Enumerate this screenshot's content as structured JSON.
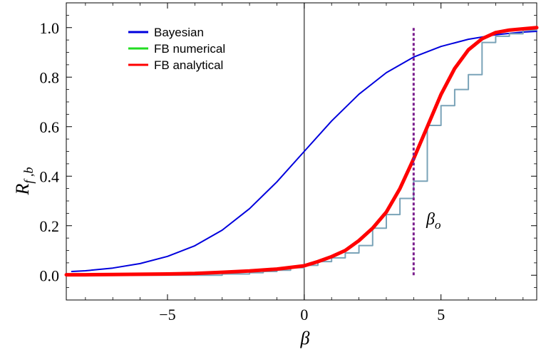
{
  "chart_data": {
    "type": "line",
    "xlabel": "β",
    "ylabel_main": "R",
    "ylabel_sub": "f ,b",
    "xlim": [
      -8.7,
      8.5
    ],
    "ylim": [
      -0.1,
      1.1
    ],
    "xticks": [
      {
        "value": -5,
        "label": "−5"
      },
      {
        "value": 0,
        "label": "0"
      },
      {
        "value": 5,
        "label": "5"
      }
    ],
    "yticks": [
      {
        "value": 0.0,
        "label": "0.0"
      },
      {
        "value": 0.2,
        "label": "0.2"
      },
      {
        "value": 0.4,
        "label": "0.4"
      },
      {
        "value": 0.6,
        "label": "0.6"
      },
      {
        "value": 0.8,
        "label": "0.8"
      },
      {
        "value": 1.0,
        "label": "1.0"
      }
    ],
    "annotation": {
      "text": "β",
      "subscript": "o",
      "x": 5.0,
      "y": 0.24
    },
    "marker_line": {
      "x": 4.0,
      "y_range": [
        0.0,
        1.0
      ],
      "color": "#7b1f8e"
    },
    "legend": {
      "position": "top-left"
    },
    "series": [
      {
        "name": "Bayesian",
        "color": "#0000dd",
        "type": "line",
        "x": [
          -8.5,
          -8,
          -7,
          -6,
          -5,
          -4,
          -3,
          -2,
          -1,
          0,
          1,
          2,
          3,
          4,
          5,
          6,
          7,
          8,
          8.5
        ],
        "y": [
          0.015,
          0.018,
          0.029,
          0.047,
          0.076,
          0.119,
          0.182,
          0.269,
          0.377,
          0.5,
          0.623,
          0.731,
          0.818,
          0.881,
          0.924,
          0.953,
          0.971,
          0.982,
          0.985
        ]
      },
      {
        "name": "FB numerical",
        "color": "#7aa3b8",
        "type": "step",
        "x": [
          -8.7,
          -5,
          -3,
          -2,
          -1.5,
          -1,
          -0.5,
          0,
          0.5,
          1,
          1.5,
          2,
          2.5,
          3,
          3.5,
          4,
          4.5,
          5,
          5.5,
          6,
          6.5,
          7,
          7.5,
          8,
          8.5
        ],
        "y": [
          0.0,
          0.0,
          0.005,
          0.01,
          0.015,
          0.02,
          0.03,
          0.04,
          0.055,
          0.07,
          0.09,
          0.12,
          0.19,
          0.245,
          0.31,
          0.38,
          0.605,
          0.685,
          0.75,
          0.81,
          0.94,
          0.965,
          0.975,
          0.99,
          0.995
        ]
      },
      {
        "name": "FB analytical",
        "color": "#ff0000",
        "type": "line",
        "x": [
          -8.7,
          -8,
          -7,
          -6,
          -5,
          -4,
          -3,
          -2,
          -1,
          0,
          0.5,
          1,
          1.5,
          2,
          2.5,
          3,
          3.5,
          4,
          4.5,
          5,
          5.5,
          6,
          6.5,
          7,
          7.5,
          8,
          8.5
        ],
        "y": [
          0.002,
          0.002,
          0.003,
          0.004,
          0.005,
          0.007,
          0.012,
          0.017,
          0.025,
          0.038,
          0.055,
          0.075,
          0.1,
          0.14,
          0.19,
          0.255,
          0.35,
          0.47,
          0.6,
          0.73,
          0.835,
          0.91,
          0.955,
          0.98,
          0.99,
          0.995,
          1.0
        ]
      }
    ]
  }
}
